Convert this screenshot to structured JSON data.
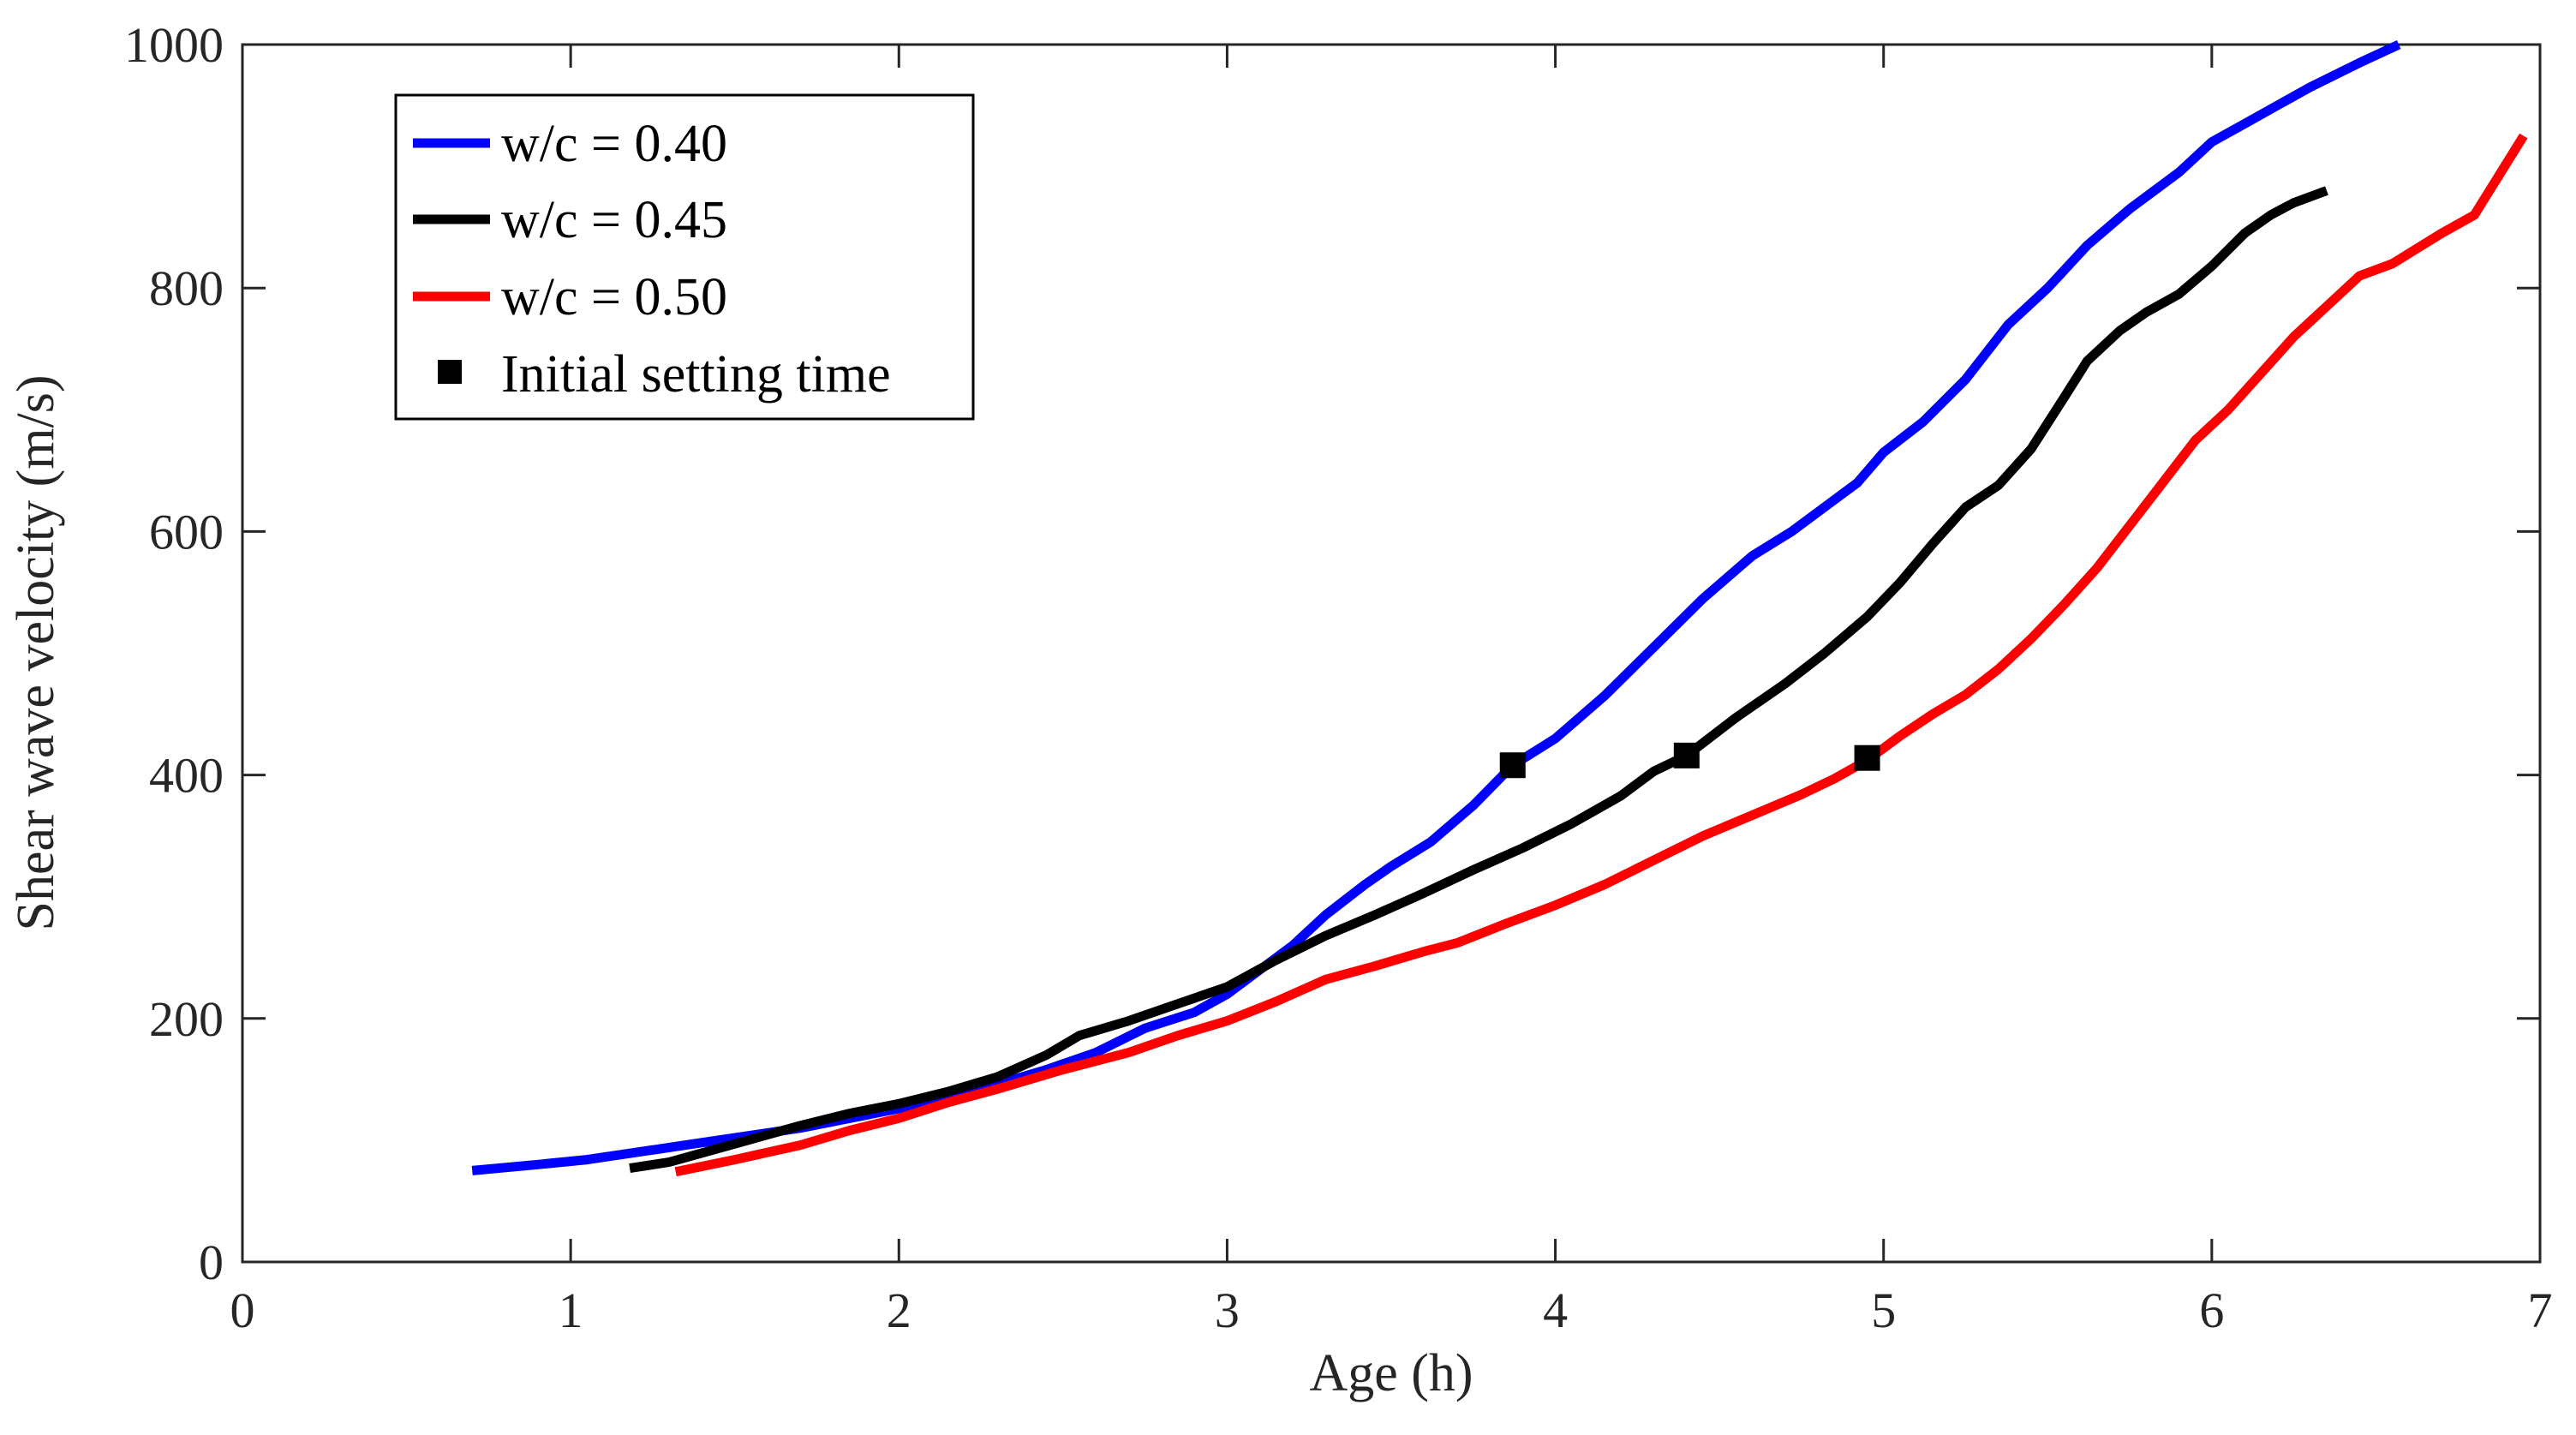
{
  "chart_data": {
    "type": "line",
    "title": "",
    "xlabel": "Age (h)",
    "ylabel": "Shear wave velocity (m/s)",
    "xlim": [
      0,
      7
    ],
    "ylim": [
      0,
      1000
    ],
    "xticks": [
      0,
      1,
      2,
      3,
      4,
      5,
      6,
      7
    ],
    "yticks": [
      0,
      200,
      400,
      600,
      800,
      1000
    ],
    "xtick_labels": [
      "0",
      "1",
      "2",
      "3",
      "4",
      "5",
      "6",
      "7"
    ],
    "ytick_labels": [
      "0",
      "200",
      "400",
      "600",
      "800",
      "1000"
    ],
    "grid": false,
    "legend_position": "top-left",
    "series": [
      {
        "name": "w/c = 0.40",
        "color": "#0000ff",
        "x": [
          0.7,
          0.9,
          1.05,
          1.2,
          1.35,
          1.5,
          1.7,
          1.85,
          2.0,
          2.15,
          2.3,
          2.45,
          2.6,
          2.75,
          2.9,
          3.0,
          3.1,
          3.2,
          3.3,
          3.42,
          3.5,
          3.62,
          3.75,
          3.87,
          4.0,
          4.15,
          4.3,
          4.45,
          4.6,
          4.72,
          4.82,
          4.92,
          5.0,
          5.12,
          5.25,
          5.38,
          5.5,
          5.62,
          5.75,
          5.9,
          6.0,
          6.1,
          6.2,
          6.3,
          6.45,
          6.57
        ],
        "y": [
          75,
          80,
          84,
          90,
          96,
          102,
          110,
          118,
          126,
          136,
          146,
          158,
          172,
          192,
          205,
          220,
          240,
          260,
          285,
          310,
          325,
          345,
          375,
          408,
          430,
          465,
          505,
          545,
          580,
          600,
          620,
          640,
          665,
          690,
          725,
          770,
          800,
          835,
          865,
          895,
          920,
          935,
          950,
          965,
          985,
          1000
        ]
      },
      {
        "name": "w/c = 0.45",
        "color": "#000000",
        "x": [
          1.18,
          1.3,
          1.5,
          1.7,
          1.85,
          2.0,
          2.15,
          2.3,
          2.45,
          2.55,
          2.7,
          2.85,
          3.0,
          3.15,
          3.3,
          3.45,
          3.6,
          3.75,
          3.9,
          4.05,
          4.2,
          4.3,
          4.4,
          4.55,
          4.7,
          4.82,
          4.95,
          5.05,
          5.15,
          5.25,
          5.35,
          5.45,
          5.55,
          5.62,
          5.72,
          5.8,
          5.9,
          6.0,
          6.1,
          6.18,
          6.25,
          6.35
        ],
        "y": [
          77,
          82,
          97,
          112,
          122,
          130,
          140,
          152,
          170,
          186,
          198,
          212,
          226,
          248,
          268,
          285,
          303,
          322,
          340,
          360,
          383,
          403,
          416,
          447,
          475,
          500,
          530,
          558,
          590,
          620,
          638,
          668,
          710,
          740,
          765,
          780,
          795,
          818,
          845,
          860,
          870,
          880
        ]
      },
      {
        "name": "w/c = 0.50",
        "color": "#ff0000",
        "x": [
          1.32,
          1.5,
          1.7,
          1.85,
          2.0,
          2.15,
          2.3,
          2.5,
          2.7,
          2.85,
          3.0,
          3.15,
          3.3,
          3.45,
          3.6,
          3.7,
          3.85,
          4.0,
          4.15,
          4.3,
          4.45,
          4.6,
          4.75,
          4.85,
          4.95,
          5.05,
          5.15,
          5.25,
          5.35,
          5.45,
          5.55,
          5.65,
          5.75,
          5.85,
          5.95,
          6.05,
          6.15,
          6.25,
          6.35,
          6.45,
          6.55,
          6.7,
          6.8,
          6.95
        ],
        "y": [
          74,
          84,
          96,
          108,
          118,
          131,
          142,
          158,
          172,
          186,
          198,
          214,
          232,
          243,
          255,
          262,
          278,
          293,
          310,
          330,
          350,
          367,
          384,
          397,
          412,
          432,
          450,
          466,
          487,
          512,
          540,
          570,
          605,
          640,
          675,
          700,
          730,
          760,
          785,
          810,
          820,
          845,
          860,
          925
        ]
      }
    ],
    "markers": {
      "name": "Initial setting time",
      "color": "#000000",
      "shape": "square",
      "points": [
        {
          "x": 3.87,
          "y": 408
        },
        {
          "x": 4.4,
          "y": 416
        },
        {
          "x": 4.95,
          "y": 414
        }
      ]
    }
  }
}
